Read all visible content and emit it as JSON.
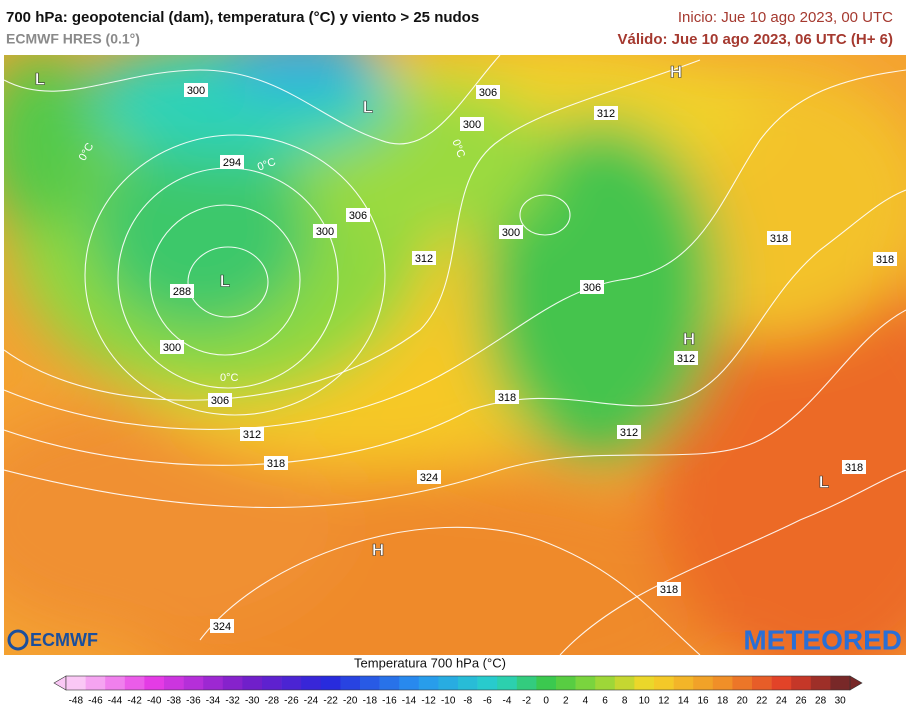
{
  "header": {
    "title": "700 hPa: geopotencial (dam), temperatura (°C) y viento > 25 nudos",
    "subtitle": "ECMWF HRES (0.1°)",
    "init": "Inicio: Jue 10 ago 2023, 00 UTC",
    "valid": "Válido: Jue 10 ago 2023, 06 UTC (H+ 6)"
  },
  "map": {
    "contour_labels": [
      300,
      306,
      300,
      312,
      294,
      306,
      300,
      300,
      312,
      318,
      318,
      288,
      306,
      300,
      312,
      306,
      318,
      312,
      312,
      318,
      324,
      318,
      318,
      324
    ],
    "pressure_centers": [
      "L",
      "L",
      "H",
      "L",
      "H",
      "L",
      "H"
    ],
    "freezing_labels": [
      "0°C",
      "0°C",
      "0°C",
      "0°C"
    ]
  },
  "logos": {
    "left": "ECMWF",
    "right": "METEORED"
  },
  "colorbar": {
    "title": "Temperatura 700 hPa (°C)",
    "ticks": [
      -48,
      -46,
      -44,
      -42,
      -40,
      -38,
      -36,
      -34,
      -32,
      -30,
      -28,
      -26,
      -24,
      -22,
      -20,
      -18,
      -16,
      -14,
      -12,
      -10,
      -8,
      -6,
      -4,
      -2,
      0,
      2,
      4,
      6,
      8,
      10,
      12,
      14,
      16,
      18,
      20,
      22,
      24,
      26,
      28,
      30
    ]
  }
}
